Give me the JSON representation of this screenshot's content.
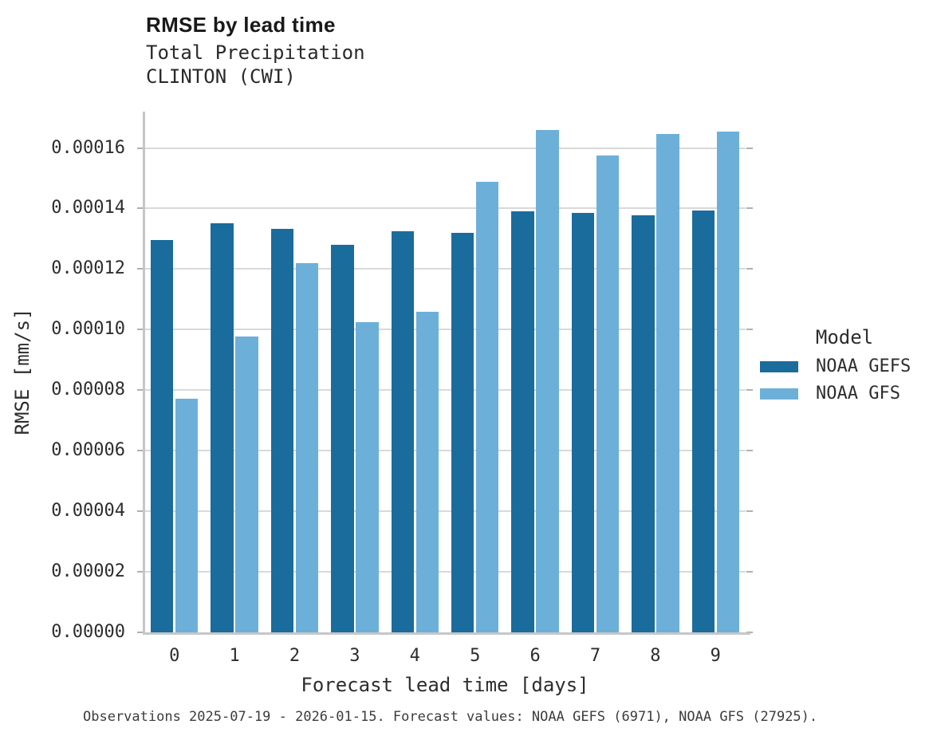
{
  "header": {
    "title": "RMSE by lead time",
    "subtitle": "Total Precipitation",
    "station": "CLINTON (CWI)"
  },
  "chart_data": {
    "type": "bar",
    "title": "RMSE by lead time",
    "subtitle": "Total Precipitation",
    "station": "CLINTON (CWI)",
    "xlabel": "Forecast lead time [days]",
    "ylabel": "RMSE [mm/s]",
    "categories": [
      "0",
      "1",
      "2",
      "3",
      "4",
      "5",
      "6",
      "7",
      "8",
      "9"
    ],
    "series": [
      {
        "name": "NOAA GEFS",
        "color": "#1a6c9d",
        "values": [
          0.0001295,
          0.0001352,
          0.0001332,
          0.000128,
          0.0001324,
          0.000132,
          0.0001391,
          0.0001385,
          0.0001378,
          0.0001394
        ]
      },
      {
        "name": "NOAA GFS",
        "color": "#6cb0da",
        "values": [
          7.72e-05,
          9.76e-05,
          0.0001219,
          0.0001024,
          0.0001059,
          0.0001487,
          0.000166,
          0.0001575,
          0.0001645,
          0.0001653
        ]
      }
    ],
    "ylim": [
      0,
      0.000172
    ],
    "yticks": {
      "values": [
        0.0,
        2e-05,
        4e-05,
        6e-05,
        8e-05,
        0.0001,
        0.00012,
        0.00014,
        0.00016
      ],
      "labels": [
        "0.00000",
        "0.00002",
        "0.00004",
        "0.00006",
        "0.00008",
        "0.00010",
        "0.00012",
        "0.00014",
        "0.00016"
      ]
    },
    "grid": "horizontal",
    "legend_title": "Model",
    "legend_position": "right"
  },
  "footer": {
    "text": "Observations 2025-07-19 - 2026-01-15. Forecast values: NOAA GEFS (6971), NOAA GFS (27925)."
  }
}
